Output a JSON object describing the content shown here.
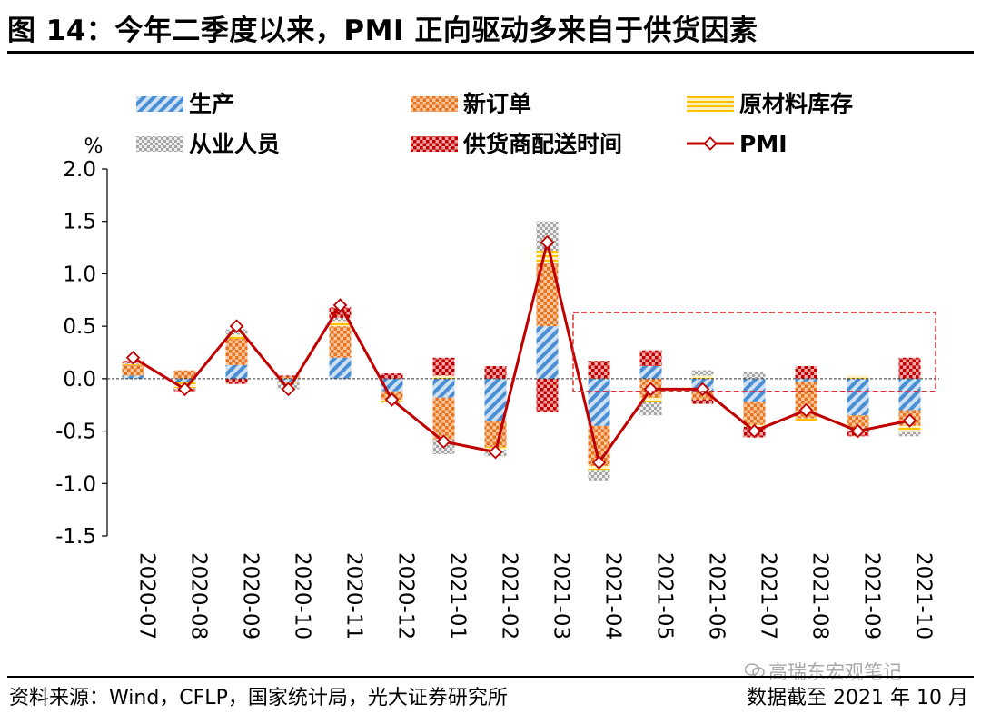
{
  "title": "图 14：今年二季度以来，PMI 正向驱动多来自于供货因素",
  "source": "资料来源：Wind，CFLP，国家统计局，光大证券研究所",
  "cutoff": "数据截至 2021 年 10 月",
  "watermark": "高瑞东宏观笔记",
  "colors": {
    "production": "#5b9bd5",
    "new_orders": "#ed7d31",
    "raw_inventory": "#ffc000",
    "employment": "#a5a5a5",
    "delivery": "#c00000",
    "pmi": "#c00000",
    "highlight_box": "#e03030"
  },
  "chart_data": {
    "type": "bar",
    "stacked": true,
    "ylabel": "%",
    "ylim": [
      -1.5,
      2.0
    ],
    "yticks": [
      -1.5,
      -1.0,
      -0.5,
      0.0,
      0.5,
      1.0,
      1.5,
      2.0
    ],
    "ytick_labels": [
      "-1.5",
      "-1.0",
      "-0.5",
      "0.0",
      "0.5",
      "1.0",
      "1.5",
      "2.0"
    ],
    "categories": [
      "2020-07",
      "2020-08",
      "2020-09",
      "2020-10",
      "2020-11",
      "2020-12",
      "2021-01",
      "2021-02",
      "2021-03",
      "2021-04",
      "2021-05",
      "2021-06",
      "2021-07",
      "2021-08",
      "2021-09",
      "2021-10"
    ],
    "series": [
      {
        "key": "production",
        "name": "生产",
        "kind": "bar",
        "values": [
          0.03,
          -0.03,
          0.13,
          -0.03,
          0.2,
          -0.12,
          -0.18,
          -0.4,
          0.5,
          -0.45,
          0.12,
          -0.12,
          -0.22,
          -0.03,
          -0.35,
          -0.3
        ]
      },
      {
        "key": "new_orders",
        "name": "新订单",
        "kind": "bar",
        "values": [
          0.1,
          0.08,
          0.25,
          0.02,
          0.3,
          -0.08,
          -0.4,
          -0.25,
          0.6,
          -0.38,
          -0.18,
          -0.08,
          -0.22,
          -0.35,
          -0.12,
          -0.15
        ]
      },
      {
        "key": "raw_inventory",
        "name": "原材料库存",
        "kind": "bar",
        "values": [
          0.01,
          -0.06,
          0.04,
          -0.01,
          0.05,
          -0.02,
          0.03,
          -0.03,
          0.12,
          -0.04,
          -0.04,
          0.03,
          -0.02,
          -0.02,
          0.03,
          -0.06
        ]
      },
      {
        "key": "employment",
        "name": "从业人员",
        "kind": "bar",
        "values": [
          0.01,
          -0.01,
          0.05,
          -0.06,
          0.03,
          -0.01,
          -0.14,
          -0.06,
          0.28,
          -0.1,
          -0.13,
          0.05,
          0.06,
          0.0,
          -0.03,
          -0.04
        ]
      },
      {
        "key": "delivery",
        "name": "供货商配送时间",
        "kind": "bar",
        "values": [
          0.02,
          -0.02,
          -0.05,
          0.01,
          0.1,
          0.05,
          0.17,
          0.12,
          -0.32,
          0.17,
          0.15,
          -0.04,
          -0.1,
          0.12,
          -0.05,
          0.2
        ]
      },
      {
        "key": "pmi",
        "name": "PMI",
        "kind": "line",
        "values": [
          0.2,
          -0.1,
          0.5,
          -0.1,
          0.7,
          -0.2,
          -0.6,
          -0.7,
          1.3,
          -0.8,
          -0.1,
          -0.1,
          -0.5,
          -0.3,
          -0.5,
          -0.4
        ]
      }
    ],
    "legend_position": "top",
    "zero_line": "dashed",
    "highlight": {
      "from": "2021-04",
      "to": "2021-10",
      "y_range": [
        -0.12,
        0.63
      ],
      "style": "dashed"
    }
  }
}
